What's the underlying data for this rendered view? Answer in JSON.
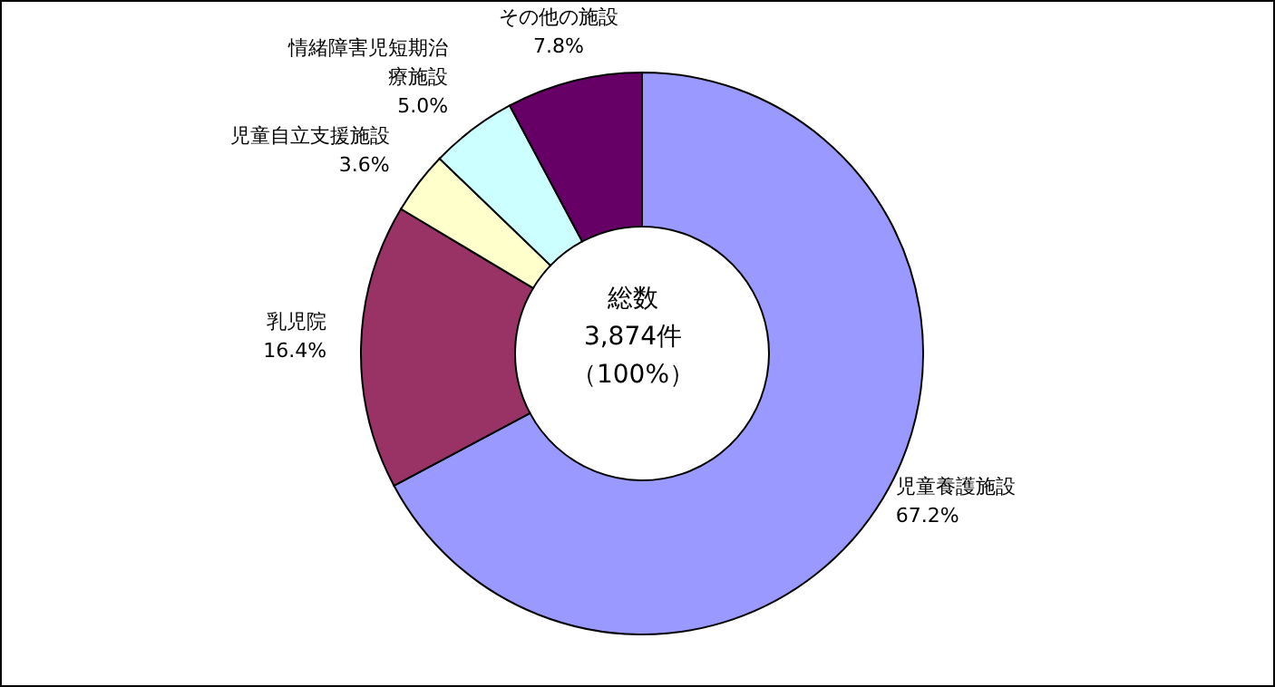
{
  "chart_data": {
    "type": "donut",
    "categories": [
      "児童養護施設",
      "乳児院",
      "児童自立支援施設",
      "情緒障害児短期治療施設",
      "その他の施設"
    ],
    "values": [
      67.2,
      16.4,
      3.6,
      5.0,
      7.8
    ],
    "value_labels": [
      "67.2%",
      "16.4%",
      "3.6%",
      "5.0%",
      "7.8%"
    ],
    "colors": [
      "#9999ff",
      "#993366",
      "#ffffcc",
      "#ccffff",
      "#660066"
    ],
    "annotations": [
      "総数",
      "3,874件",
      "（100%）"
    ]
  }
}
